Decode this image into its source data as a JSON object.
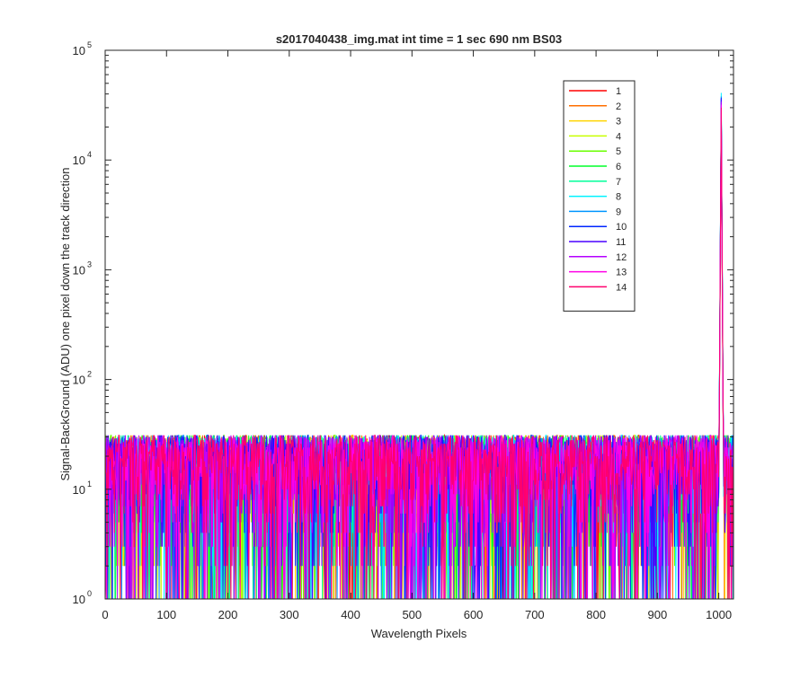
{
  "chart_data": {
    "type": "line",
    "title": "s2017040438_img.mat int time = 1 sec  690 nm BS03",
    "xlabel": "Wavelength Pixels",
    "ylabel": "Signal-BackGround (ADU) one pixel down the track direction",
    "xlim": [
      0,
      1024
    ],
    "ylim": [
      1,
      100000
    ],
    "yscale": "log",
    "xticks": [
      0,
      100,
      200,
      300,
      400,
      500,
      600,
      700,
      800,
      900,
      1000
    ],
    "yticks": [
      {
        "value": 1,
        "base": "10",
        "exp": "0"
      },
      {
        "value": 10,
        "base": "10",
        "exp": "1"
      },
      {
        "value": 100,
        "base": "10",
        "exp": "2"
      },
      {
        "value": 1000,
        "base": "10",
        "exp": "3"
      },
      {
        "value": 10000,
        "base": "10",
        "exp": "4"
      },
      {
        "value": 100000,
        "base": "10",
        "exp": "5"
      }
    ],
    "grid": false,
    "legend_position": "top-right",
    "noise_floor_range": [
      1,
      50
    ],
    "peak": {
      "x": 1004,
      "y": 30000
    },
    "series": [
      {
        "name": "1",
        "color": "#ff0000",
        "peak": 30000
      },
      {
        "name": "2",
        "color": "#ff6f00",
        "peak": 31000
      },
      {
        "name": "3",
        "color": "#ffd400",
        "peak": 32000
      },
      {
        "name": "4",
        "color": "#c8ff00",
        "peak": 33000
      },
      {
        "name": "5",
        "color": "#6aff00",
        "peak": 34000
      },
      {
        "name": "6",
        "color": "#00ff2a",
        "peak": 35000
      },
      {
        "name": "7",
        "color": "#00ff9a",
        "peak": 36000
      },
      {
        "name": "8",
        "color": "#00f2ff",
        "peak": 41000
      },
      {
        "name": "9",
        "color": "#0096ff",
        "peak": 38000
      },
      {
        "name": "10",
        "color": "#0026ff",
        "peak": 37000
      },
      {
        "name": "11",
        "color": "#4a00ff",
        "peak": 36000
      },
      {
        "name": "12",
        "color": "#b400ff",
        "peak": 34000
      },
      {
        "name": "13",
        "color": "#ff00e6",
        "peak": 32000
      },
      {
        "name": "14",
        "color": "#ff006e",
        "peak": 30000
      }
    ]
  }
}
